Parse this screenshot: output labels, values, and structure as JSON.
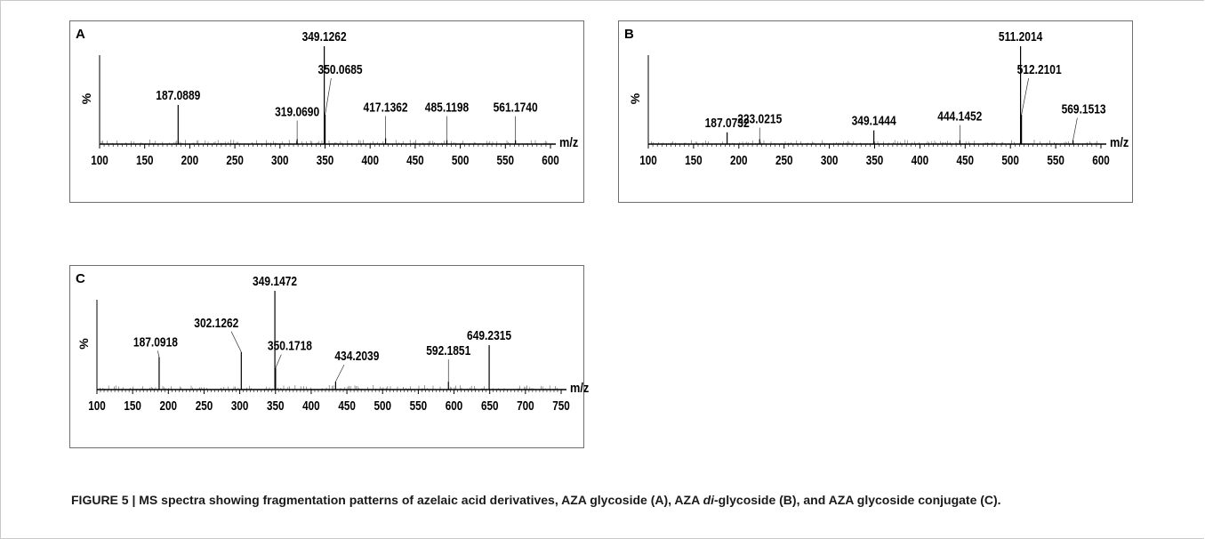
{
  "chart_data": [
    {
      "type": "bar",
      "panel_label": "A",
      "ylabel": "%",
      "xlabel": "m/z",
      "xlim": [
        100,
        600
      ],
      "ylim": [
        0,
        100
      ],
      "x_ticks": [
        100,
        150,
        200,
        250,
        300,
        350,
        400,
        450,
        500,
        550,
        600
      ],
      "peaks": [
        {
          "mz": 187.0889,
          "intensity": 40,
          "label": "187.0889"
        },
        {
          "mz": 319.069,
          "intensity": 5,
          "label": "319.0690"
        },
        {
          "mz": 349.1262,
          "intensity": 100,
          "label": "349.1262"
        },
        {
          "mz": 350.0685,
          "intensity": 30,
          "label": "350.0685"
        },
        {
          "mz": 417.1362,
          "intensity": 6,
          "label": "417.1362"
        },
        {
          "mz": 485.1198,
          "intensity": 4,
          "label": "485.1198"
        },
        {
          "mz": 561.174,
          "intensity": 4,
          "label": "561.1740"
        }
      ]
    },
    {
      "type": "bar",
      "panel_label": "B",
      "ylabel": "%",
      "xlabel": "m/z",
      "xlim": [
        100,
        600
      ],
      "ylim": [
        0,
        100
      ],
      "x_ticks": [
        100,
        150,
        200,
        250,
        300,
        350,
        400,
        450,
        500,
        550,
        600
      ],
      "peaks": [
        {
          "mz": 187.0732,
          "intensity": 12,
          "label": "187.0732"
        },
        {
          "mz": 223.0215,
          "intensity": 5,
          "label": "223.0215"
        },
        {
          "mz": 349.1444,
          "intensity": 14,
          "label": "349.1444"
        },
        {
          "mz": 444.1452,
          "intensity": 4,
          "label": "444.1452"
        },
        {
          "mz": 511.2014,
          "intensity": 100,
          "label": "511.2014"
        },
        {
          "mz": 512.2101,
          "intensity": 30,
          "label": "512.2101"
        },
        {
          "mz": 569.1513,
          "intensity": 4,
          "label": "569.1513"
        }
      ]
    },
    {
      "type": "bar",
      "panel_label": "C",
      "ylabel": "%",
      "xlabel": "m/z",
      "xlim": [
        100,
        750
      ],
      "ylim": [
        0,
        100
      ],
      "x_ticks": [
        100,
        150,
        200,
        250,
        300,
        350,
        400,
        450,
        500,
        550,
        600,
        650,
        700,
        750
      ],
      "peaks": [
        {
          "mz": 187.0918,
          "intensity": 33,
          "label": "187.0918"
        },
        {
          "mz": 302.1262,
          "intensity": 38,
          "label": "302.1262"
        },
        {
          "mz": 349.1472,
          "intensity": 100,
          "label": "349.1472"
        },
        {
          "mz": 350.1718,
          "intensity": 22,
          "label": "350.1718"
        },
        {
          "mz": 434.2039,
          "intensity": 8,
          "label": "434.2039"
        },
        {
          "mz": 592.1851,
          "intensity": 8,
          "label": "592.1851"
        },
        {
          "mz": 649.2315,
          "intensity": 45,
          "label": "649.2315"
        }
      ]
    }
  ],
  "caption": {
    "part1": "FIGURE 5 | MS spectra showing fragmentation patterns of azelaic acid derivatives, AZA glycoside (A), AZA ",
    "italic": "di",
    "part2": "-glycoside (B), and AZA glycoside conjugate (C)."
  }
}
